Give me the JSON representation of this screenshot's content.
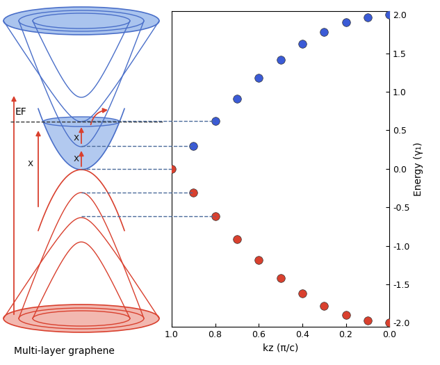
{
  "chart_data": {
    "type": "scatter",
    "x_label": "kz (π/c)",
    "y_label": "Energy (γ₁)",
    "x": [
      1.0,
      0.9,
      0.8,
      0.7,
      0.6,
      0.5,
      0.4,
      0.3,
      0.2,
      0.1,
      0.0
    ],
    "series": [
      {
        "color": "#3b5bd6",
        "marker": "circle",
        "values": [
          null,
          0.3,
          0.62,
          0.91,
          1.18,
          1.42,
          1.62,
          1.78,
          1.9,
          1.97,
          2.0
        ]
      },
      {
        "color": "#d9402e",
        "marker": "circle",
        "values": [
          0.0,
          -0.31,
          -0.62,
          -0.91,
          -1.18,
          -1.42,
          -1.62,
          -1.78,
          -1.9,
          -1.97,
          -2.0
        ]
      }
    ],
    "xlim": [
      1.0,
      0.0
    ],
    "xticks": [
      1.0,
      0.8,
      0.6,
      0.4,
      0.2,
      0.0
    ],
    "ylim": [
      -2.05,
      2.05
    ],
    "yticks": [
      -2.0,
      -1.5,
      -1.0,
      -0.5,
      0.0,
      0.5,
      1.0,
      1.5,
      2.0
    ],
    "grid": false
  },
  "diagram": {
    "caption": "Multi-layer graphene",
    "fermi_level": "EF",
    "marks": [
      "x",
      "x",
      "x"
    ]
  }
}
